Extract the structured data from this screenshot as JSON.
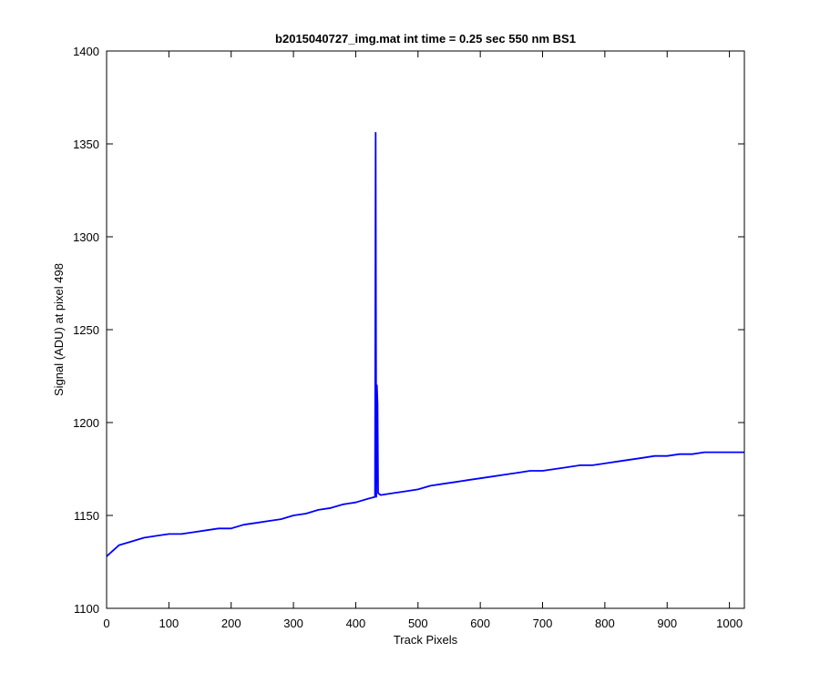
{
  "figure_background": "#ffffff",
  "chart_data": {
    "type": "line",
    "title": "b2015040727_img.mat int time = 0.25 sec  550 nm BS1",
    "xlabel": "Track Pixels",
    "ylabel": "Signal (ADU) at pixel 498",
    "xlim": [
      0,
      1024
    ],
    "ylim": [
      1100,
      1400
    ],
    "xticks": [
      0,
      100,
      200,
      300,
      400,
      500,
      600,
      700,
      800,
      900,
      1000
    ],
    "yticks": [
      1100,
      1150,
      1200,
      1250,
      1300,
      1350,
      1400
    ],
    "grid": false,
    "line_color": "#0000ff",
    "series": [
      {
        "name": "",
        "x": [
          0,
          10,
          20,
          40,
          60,
          80,
          100,
          120,
          140,
          160,
          180,
          200,
          220,
          240,
          260,
          280,
          300,
          320,
          340,
          360,
          380,
          400,
          420,
          431,
          432,
          433,
          434,
          435,
          436,
          440,
          460,
          480,
          500,
          520,
          540,
          560,
          580,
          600,
          620,
          640,
          660,
          680,
          700,
          720,
          740,
          760,
          780,
          800,
          820,
          840,
          860,
          880,
          900,
          920,
          940,
          960,
          980,
          1000,
          1024
        ],
        "y": [
          1128,
          1131,
          1134,
          1136,
          1138,
          1139,
          1140,
          1140,
          1141,
          1142,
          1143,
          1143,
          1145,
          1146,
          1147,
          1148,
          1150,
          1151,
          1153,
          1154,
          1156,
          1157,
          1159,
          1160,
          1356,
          1160,
          1220,
          1210,
          1162,
          1161,
          1162,
          1163,
          1164,
          1166,
          1167,
          1168,
          1169,
          1170,
          1171,
          1172,
          1173,
          1174,
          1174,
          1175,
          1176,
          1177,
          1177,
          1178,
          1179,
          1180,
          1181,
          1182,
          1182,
          1183,
          1183,
          1184,
          1184,
          1184,
          1184
        ]
      }
    ]
  }
}
